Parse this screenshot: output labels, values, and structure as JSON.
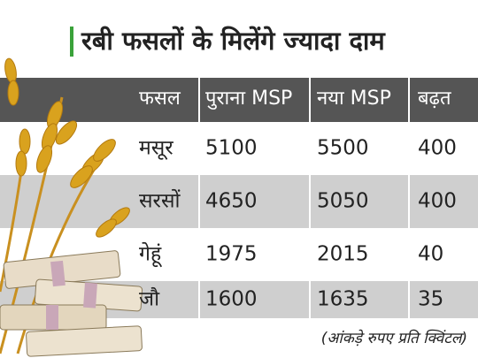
{
  "header": {
    "title": "रबी फसलों के मिलेंगे ज्यादा दाम"
  },
  "table": {
    "columns": [
      "फसल",
      "पुराना MSP",
      "नया MSP",
      "बढ़त"
    ],
    "rows": [
      [
        "मसूर",
        5100,
        5500,
        400
      ],
      [
        "सरसों",
        4650,
        5050,
        400
      ],
      [
        "गेहूं",
        1975,
        2015,
        40
      ],
      [
        "जौ",
        1600,
        1635,
        35
      ]
    ]
  },
  "footnote": "(आंकड़े रुपए प्रति क्विंटल)"
}
